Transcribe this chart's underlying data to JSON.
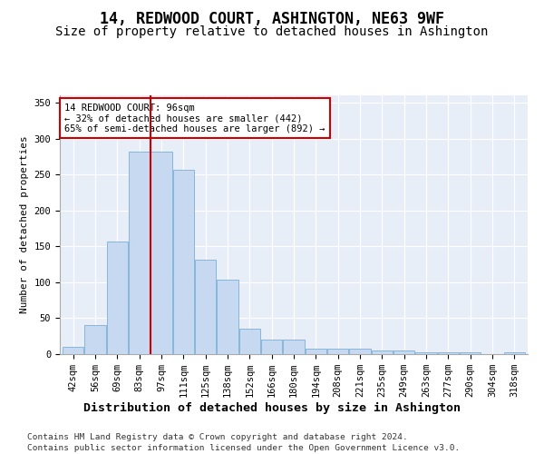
{
  "title": "14, REDWOOD COURT, ASHINGTON, NE63 9WF",
  "subtitle": "Size of property relative to detached houses in Ashington",
  "xlabel": "Distribution of detached houses by size in Ashington",
  "ylabel": "Number of detached properties",
  "bar_labels": [
    "42sqm",
    "56sqm",
    "69sqm",
    "83sqm",
    "97sqm",
    "111sqm",
    "125sqm",
    "138sqm",
    "152sqm",
    "166sqm",
    "180sqm",
    "194sqm",
    "208sqm",
    "221sqm",
    "235sqm",
    "249sqm",
    "263sqm",
    "277sqm",
    "290sqm",
    "304sqm",
    "318sqm"
  ],
  "bar_heights": [
    10,
    40,
    157,
    282,
    282,
    257,
    132,
    103,
    35,
    20,
    20,
    8,
    8,
    8,
    5,
    5,
    3,
    3,
    2,
    0,
    2
  ],
  "bar_color": "#c6d9f0",
  "bar_edge_color": "#7bafd4",
  "vline_index": 4,
  "vline_color": "#cc0000",
  "annotation_text": "14 REDWOOD COURT: 96sqm\n← 32% of detached houses are smaller (442)\n65% of semi-detached houses are larger (892) →",
  "annotation_box_color": "#ffffff",
  "annotation_box_edge": "#cc0000",
  "ylim": [
    0,
    360
  ],
  "yticks": [
    0,
    50,
    100,
    150,
    200,
    250,
    300,
    350
  ],
  "plot_bg_color": "#e8eef8",
  "footer1": "Contains HM Land Registry data © Crown copyright and database right 2024.",
  "footer2": "Contains public sector information licensed under the Open Government Licence v3.0.",
  "title_fontsize": 12,
  "subtitle_fontsize": 10,
  "xlabel_fontsize": 9.5,
  "ylabel_fontsize": 8,
  "tick_fontsize": 7.5,
  "footer_fontsize": 6.8
}
